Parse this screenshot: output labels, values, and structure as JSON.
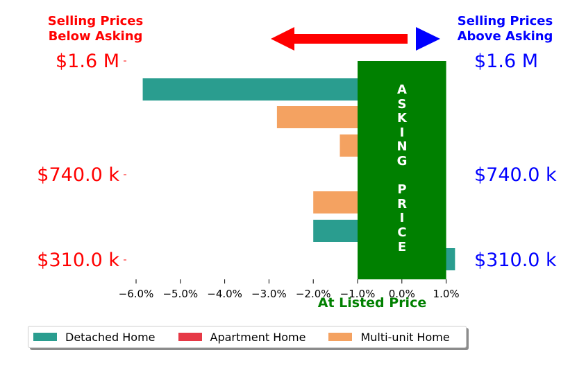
{
  "chart_data": {
    "type": "bar",
    "orientation": "horizontal",
    "xlabel": "At Listed Price",
    "x_ticks": [
      "−6.0%",
      "−5.0%",
      "−4.0%",
      "−3.0%",
      "−2.0%",
      "−1.0%",
      "0.0%",
      "1.0%"
    ],
    "x_tick_values": [
      -6,
      -5,
      -4,
      -3,
      -2,
      -1,
      0,
      1
    ],
    "xlim": [
      -6.2,
      1.25
    ],
    "y_labels_left": [
      "$1.6 M",
      "$740.0 k",
      "$310.0 k"
    ],
    "y_labels_right": [
      "$1.6 M",
      "$740.0 k",
      "$310.0 k"
    ],
    "header_left": "Selling Prices\nBelow Asking",
    "header_right": "Selling Prices\nAbove Asking",
    "overlay_text": [
      "A",
      "S",
      "K",
      "I",
      "N",
      "G",
      "",
      "P",
      "R",
      "I",
      "C",
      "E"
    ],
    "overlay_range": [
      -1.0,
      1.0
    ],
    "legend": {
      "placement": "bottom",
      "entries": [
        {
          "name": "Detached Home",
          "color": "#2a9d8f"
        },
        {
          "name": "Apartment Home",
          "color": "#e63946"
        },
        {
          "name": "Multi-unit Home",
          "color": "#f4a261"
        }
      ]
    },
    "bars": [
      {
        "series": "Detached Home",
        "value": -5.85
      },
      {
        "series": "Multi-unit Home",
        "value": -2.82
      },
      {
        "series": "Multi-unit Home",
        "value": -1.4
      },
      {
        "series": "Multi-unit Home",
        "value": -2.0
      },
      {
        "series": "Detached Home",
        "value": -2.0
      },
      {
        "series": "Detached Home",
        "value": 1.2
      }
    ],
    "colors": {
      "below": "#ff0000",
      "above": "#0000ff",
      "asking": "#008000"
    }
  }
}
